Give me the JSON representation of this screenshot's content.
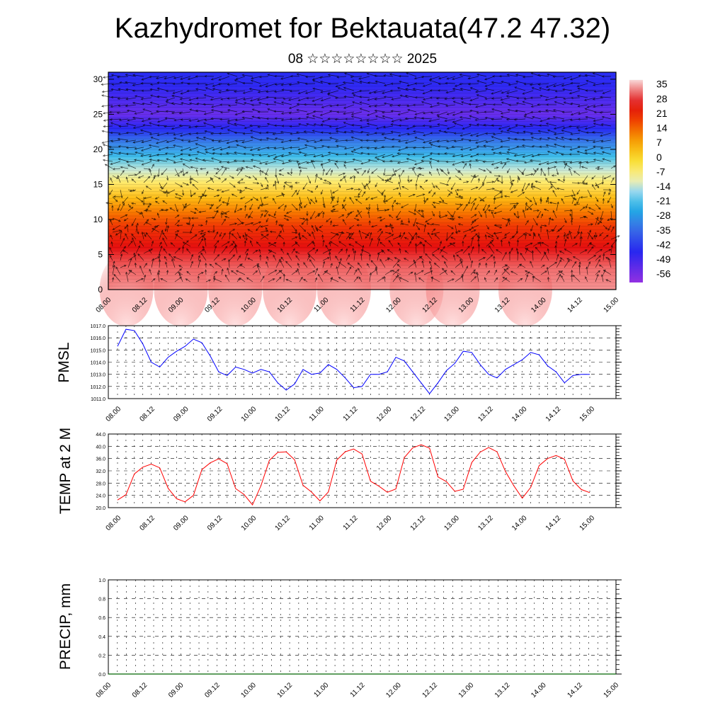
{
  "header": {
    "title": "Kazhydromet for Bektauata(47.2 47.32)",
    "subtitle": "08 ☆☆☆☆☆☆☆☆ 2025"
  },
  "time_ticks": [
    "08.00",
    "08.12",
    "09.00",
    "09.12",
    "10.00",
    "10.12",
    "11.00",
    "11.12",
    "12.00",
    "12.12",
    "13.00",
    "13.12",
    "14.00",
    "14.12",
    "15.00"
  ],
  "chart_data": [
    {
      "type": "heatmap",
      "panel": "temperature-wind-cross-section",
      "x_ticks": [
        "08.00",
        "08.12",
        "09.00",
        "09.12",
        "10.00",
        "10.12",
        "11.00",
        "11.12",
        "12.00",
        "12.12",
        "13.00",
        "13.12",
        "14.00",
        "14.12",
        "15.00"
      ],
      "y_ticks": [
        0,
        5,
        10,
        15,
        20,
        25,
        30
      ],
      "ylim": [
        0,
        31
      ],
      "colorbar_labels": [
        "35",
        "28",
        "21",
        "14",
        "7",
        "0",
        "-7",
        "-14",
        "-21",
        "-28",
        "-35",
        "-42",
        "-49",
        "-56"
      ],
      "colorbar_range": [
        -60,
        38
      ],
      "profile": [
        {
          "y": 0,
          "value": 34
        },
        {
          "y": 3,
          "value": 32
        },
        {
          "y": 6,
          "value": 26
        },
        {
          "y": 9,
          "value": 20
        },
        {
          "y": 11,
          "value": 13
        },
        {
          "y": 13,
          "value": 5
        },
        {
          "y": 15.5,
          "value": -6
        },
        {
          "y": 17,
          "value": -13
        },
        {
          "y": 19,
          "value": -22
        },
        {
          "y": 21,
          "value": -32
        },
        {
          "y": 23,
          "value": -45
        },
        {
          "y": 25,
          "value": -54
        },
        {
          "y": 27,
          "value": -50
        },
        {
          "y": 29,
          "value": -46
        },
        {
          "y": 31,
          "value": -44
        }
      ],
      "surface_warm_peaks_x": [
        "08.06",
        "09.00",
        "09.18",
        "10.12",
        "11.06",
        "12.06",
        "12.18",
        "13.18"
      ],
      "wind_vectors": true,
      "colors": {
        "warm": "#ff0000",
        "cold": "#2020ff"
      }
    },
    {
      "type": "line",
      "panel": "pmsl",
      "ylabel": "PMSL",
      "y_ticks": [
        "1011.0",
        "1012.0",
        "1013.0",
        "1014.0",
        "1015.0",
        "1016.0",
        "1017.0"
      ],
      "ylim": [
        1011,
        1017
      ],
      "x_ticks": [
        "08.00",
        "08.12",
        "09.00",
        "09.12",
        "10.00",
        "10.12",
        "11.00",
        "11.12",
        "12.00",
        "12.12",
        "13.00",
        "13.12",
        "14.00",
        "14.12",
        "15.00"
      ],
      "series": [
        {
          "color": "#0000ff",
          "values": [
            1015.3,
            1016.7,
            1016.6,
            1015.5,
            1014.0,
            1013.6,
            1014.4,
            1014.9,
            1015.3,
            1015.9,
            1015.6,
            1014.5,
            1013.2,
            1012.9,
            1013.6,
            1013.4,
            1013.1,
            1013.4,
            1013.2,
            1012.3,
            1011.7,
            1012.2,
            1013.4,
            1013.0,
            1013.1,
            1013.8,
            1013.4,
            1012.7,
            1011.9,
            1012.0,
            1013.0,
            1013.0,
            1013.2,
            1014.4,
            1014.1,
            1013.2,
            1012.3,
            1011.4,
            1012.3,
            1013.3,
            1013.9,
            1014.9,
            1014.8,
            1013.8,
            1013.0,
            1012.7,
            1013.4,
            1013.8,
            1014.2,
            1014.8,
            1014.6,
            1013.7,
            1013.2,
            1012.3,
            1012.9,
            1013.0,
            1013.0
          ]
        }
      ]
    },
    {
      "type": "line",
      "panel": "temp-2m",
      "ylabel": "TEMP at 2 M",
      "y_ticks": [
        "20.0",
        "24.0",
        "28.0",
        "32.0",
        "36.0",
        "40.0",
        "44.0"
      ],
      "ylim": [
        20,
        44
      ],
      "x_ticks": [
        "08.00",
        "08.12",
        "09.00",
        "09.12",
        "10.00",
        "10.12",
        "11.00",
        "11.12",
        "12.00",
        "12.12",
        "13.00",
        "13.12",
        "14.00",
        "14.12",
        "15.00"
      ],
      "series": [
        {
          "color": "#ff0000",
          "values": [
            22.5,
            24.2,
            31.0,
            33.2,
            34.2,
            33.0,
            26.3,
            22.9,
            21.9,
            24.0,
            32.4,
            34.6,
            35.9,
            34.3,
            26.2,
            24.3,
            20.9,
            27.1,
            35.4,
            38.0,
            38.2,
            35.6,
            27.3,
            25.1,
            22.2,
            25.1,
            35.5,
            38.2,
            39.1,
            37.5,
            28.6,
            27.0,
            25.0,
            26.1,
            36.3,
            39.5,
            40.5,
            39.4,
            30.0,
            28.5,
            25.3,
            26.0,
            34.7,
            38.1,
            39.6,
            38.2,
            31.8,
            27.1,
            23.1,
            26.6,
            33.7,
            36.0,
            37.0,
            35.8,
            28.7,
            25.9,
            24.9
          ]
        }
      ]
    },
    {
      "type": "line",
      "panel": "precip",
      "ylabel": "PRECIP, mm",
      "y_ticks": [
        "0.0",
        "0.2",
        "0.4",
        "0.6",
        "0.8",
        "1.0"
      ],
      "ylim": [
        0,
        1
      ],
      "x_ticks": [
        "08.00",
        "08.12",
        "09.00",
        "09.12",
        "10.00",
        "10.12",
        "11.00",
        "11.12",
        "12.00",
        "12.12",
        "13.00",
        "13.12",
        "14.00",
        "14.12",
        "15.00"
      ],
      "series": [
        {
          "color": "#006600",
          "values": [
            0,
            0,
            0,
            0,
            0,
            0,
            0,
            0,
            0,
            0,
            0,
            0,
            0,
            0,
            0,
            0,
            0,
            0,
            0,
            0,
            0,
            0,
            0,
            0,
            0,
            0,
            0,
            0,
            0,
            0,
            0,
            0,
            0,
            0,
            0,
            0,
            0,
            0,
            0,
            0,
            0,
            0,
            0,
            0,
            0,
            0,
            0,
            0,
            0,
            0,
            0,
            0,
            0,
            0,
            0,
            0,
            0
          ]
        }
      ]
    }
  ]
}
